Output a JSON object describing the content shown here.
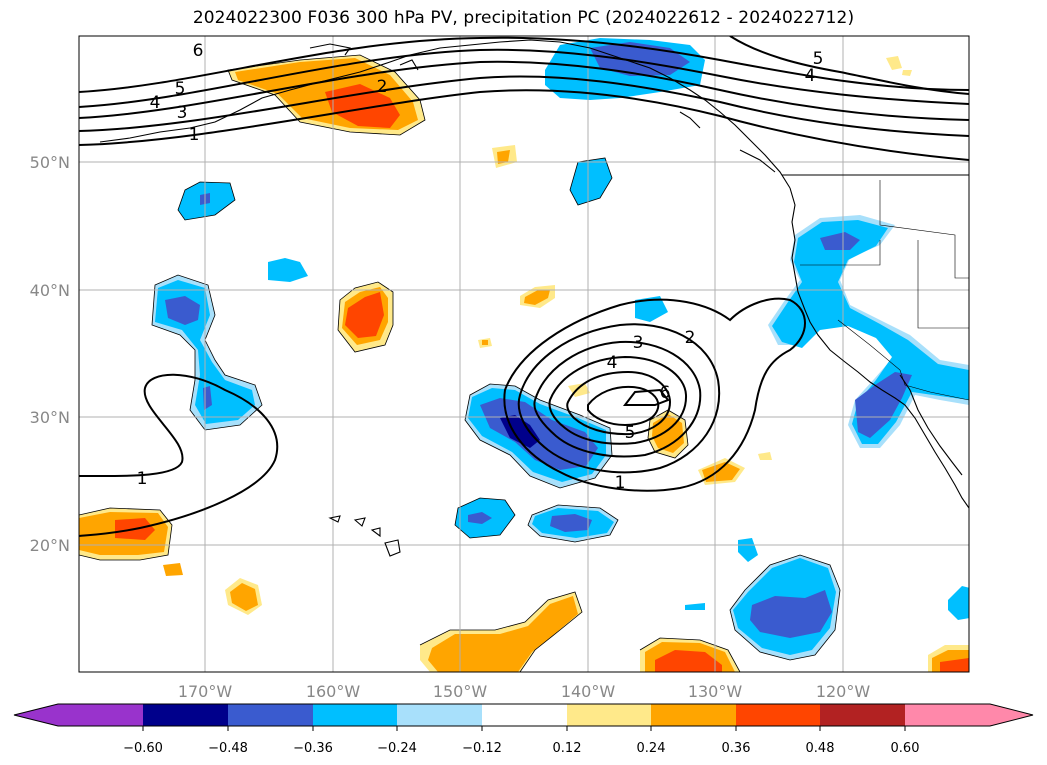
{
  "title": "2024022300 F036 300 hPa PV, precipitation PC (2024022612 - 2024022712)",
  "map": {
    "lon_ticks": [
      "170°W",
      "160°W",
      "150°W",
      "140°W",
      "130°W",
      "120°W"
    ],
    "lat_ticks": [
      "50°N",
      "40°N",
      "30°N",
      "20°N"
    ],
    "grid": true,
    "coastlines": true
  },
  "contour_labels": [
    "6",
    "5",
    "4",
    "3",
    "1",
    "2",
    "5",
    "4",
    "3",
    "2",
    "4",
    "6",
    "5",
    "1",
    "1"
  ],
  "colorbar": {
    "ticks": [
      "−0.60",
      "−0.48",
      "−0.36",
      "−0.24",
      "−0.12",
      "0.12",
      "0.24",
      "0.36",
      "0.48",
      "0.60"
    ],
    "colors": [
      "#9933cc",
      "#00008b",
      "#3a5bcf",
      "#00bfff",
      "#a8e0fb",
      "#ffffff",
      "#ffe98a",
      "#ffa500",
      "#ff4500",
      "#b22222",
      "#ff88aa"
    ]
  }
}
